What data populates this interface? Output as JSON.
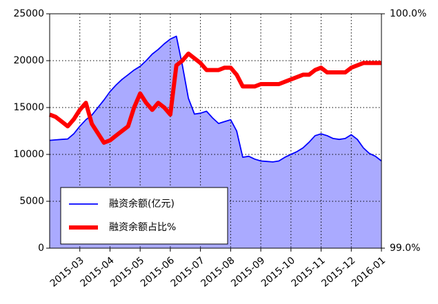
{
  "chart_data": {
    "type": "line",
    "categories": [
      null,
      null,
      null,
      null,
      null,
      "2015-03",
      null,
      null,
      null,
      null,
      "2015-04",
      null,
      null,
      null,
      null,
      "2015-05",
      null,
      null,
      null,
      null,
      "2015-06",
      null,
      null,
      null,
      null,
      "2015-07",
      null,
      null,
      null,
      null,
      "2015-08",
      null,
      null,
      null,
      null,
      "2015-09",
      null,
      null,
      null,
      null,
      "2015-10",
      null,
      null,
      null,
      null,
      "2015-11",
      null,
      null,
      null,
      null,
      "2015-12",
      null,
      null,
      null,
      null,
      "2016-01"
    ],
    "series": [
      {
        "name": "融资余额(亿元)",
        "color": "#0000ff",
        "fill": "#aaaaff",
        "values": [
          11500,
          11550,
          11600,
          11650,
          12200,
          13000,
          13700,
          14200,
          15000,
          15800,
          16700,
          17400,
          18000,
          18500,
          19000,
          19400,
          20000,
          20700,
          21200,
          21800,
          22300,
          22600,
          19500,
          16000,
          14300,
          14400,
          14600,
          13900,
          13300,
          13500,
          13700,
          12500,
          9700,
          9800,
          9500,
          9300,
          9250,
          9200,
          9300,
          9700,
          10000,
          10300,
          10700,
          11300,
          12000,
          12200,
          12000,
          11700,
          11600,
          11700,
          12100,
          11600,
          10700,
          10100,
          9800,
          9300
        ]
      },
      {
        "name": "融资余额占比%",
        "color": "#ff0000",
        "axis": "y2",
        "values": [
          99.57,
          99.56,
          99.54,
          99.52,
          99.55,
          99.59,
          99.62,
          99.53,
          99.49,
          99.45,
          99.46,
          99.48,
          99.5,
          99.52,
          99.6,
          99.66,
          99.62,
          99.59,
          99.62,
          99.6,
          99.57,
          99.78,
          99.8,
          99.83,
          99.81,
          99.79,
          99.76,
          99.76,
          99.76,
          99.77,
          99.77,
          99.74,
          99.69,
          99.69,
          99.69,
          99.7,
          99.7,
          99.7,
          99.7,
          99.71,
          99.72,
          99.73,
          99.74,
          99.74,
          99.76,
          99.77,
          99.75,
          99.75,
          99.75,
          99.75,
          99.77,
          99.78,
          99.79,
          99.79,
          99.79,
          99.79
        ]
      }
    ],
    "ylim": [
      0,
      25000
    ],
    "yticks": [
      0,
      5000,
      10000,
      15000,
      20000,
      25000
    ],
    "y2lim": [
      99,
      100
    ],
    "y2ticks": [
      {
        "value": 99,
        "label": "99.0%"
      },
      {
        "value": 100,
        "label": "100.0%"
      }
    ],
    "grid": true,
    "legend": "lower left"
  }
}
